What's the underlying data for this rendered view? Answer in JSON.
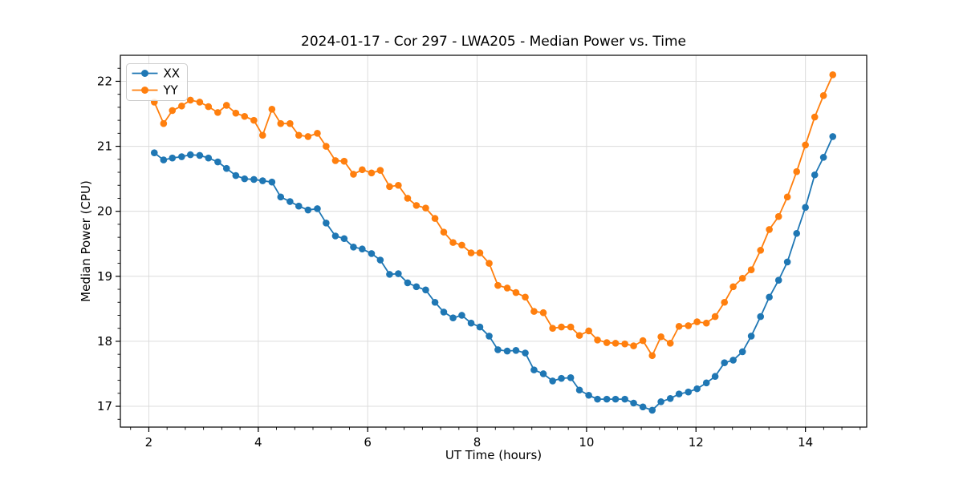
{
  "title": "2024-01-17 - Cor 297 - LWA205 - Median Power vs. Time",
  "chart_data": {
    "type": "line",
    "title": "2024-01-17 - Cor 297 - LWA205 - Median Power vs. Time",
    "xlabel": "UT Time (hours)",
    "ylabel": "Median Power (CPU)",
    "xlim": [
      1.48,
      15.12
    ],
    "ylim": [
      16.68,
      22.4
    ],
    "x_major_ticks": [
      2,
      4,
      6,
      8,
      10,
      12,
      14
    ],
    "y_major_ticks": [
      17,
      18,
      19,
      20,
      21,
      22
    ],
    "x_minor_step": 0.333333,
    "y_minor_step": 0.2,
    "grid": "major",
    "grid_color": "#dcdcdc",
    "legend_position": "upper-left",
    "x": [
      2.1,
      2.27,
      2.43,
      2.6,
      2.76,
      2.93,
      3.09,
      3.26,
      3.42,
      3.59,
      3.75,
      3.92,
      4.08,
      4.25,
      4.41,
      4.58,
      4.74,
      4.91,
      5.08,
      5.24,
      5.41,
      5.57,
      5.74,
      5.9,
      6.07,
      6.23,
      6.4,
      6.56,
      6.73,
      6.89,
      7.06,
      7.23,
      7.39,
      7.56,
      7.72,
      7.89,
      8.05,
      8.22,
      8.38,
      8.55,
      8.71,
      8.88,
      9.04,
      9.21,
      9.38,
      9.54,
      9.71,
      9.87,
      10.04,
      10.2,
      10.37,
      10.53,
      10.7,
      10.86,
      11.03,
      11.2,
      11.36,
      11.53,
      11.69,
      11.86,
      12.02,
      12.19,
      12.35,
      12.52,
      12.68,
      12.85,
      13.01,
      13.18,
      13.34,
      13.51,
      13.67,
      13.84,
      14.0,
      14.17,
      14.33,
      14.5
    ],
    "series": [
      {
        "name": "XX",
        "color": "#1f77b4",
        "values": [
          20.9,
          20.79,
          20.82,
          20.84,
          20.87,
          20.86,
          20.82,
          20.76,
          20.66,
          20.55,
          20.5,
          20.49,
          20.47,
          20.45,
          20.22,
          20.15,
          20.08,
          20.02,
          20.04,
          19.82,
          19.62,
          19.58,
          19.45,
          19.42,
          19.35,
          19.25,
          19.03,
          19.04,
          18.9,
          18.84,
          18.79,
          18.6,
          18.45,
          18.36,
          18.4,
          18.28,
          18.22,
          18.08,
          17.87,
          17.85,
          17.86,
          17.82,
          17.56,
          17.5,
          17.39,
          17.43,
          17.44,
          17.25,
          17.17,
          17.11,
          17.11,
          17.11,
          17.11,
          17.05,
          16.99,
          16.94,
          17.07,
          17.12,
          17.19,
          17.22,
          17.27,
          17.36,
          17.46,
          17.67,
          17.71,
          17.84,
          18.08,
          18.38,
          18.68,
          18.94,
          19.22,
          19.66,
          20.06,
          20.56,
          20.83,
          21.15
        ]
      },
      {
        "name": "YY",
        "color": "#ff7f0e",
        "values": [
          21.68,
          21.35,
          21.55,
          21.62,
          21.71,
          21.68,
          21.61,
          21.52,
          21.63,
          21.51,
          21.46,
          21.4,
          21.17,
          21.57,
          21.35,
          21.35,
          21.17,
          21.15,
          21.2,
          21.0,
          20.78,
          20.77,
          20.57,
          20.64,
          20.59,
          20.63,
          20.38,
          20.4,
          20.2,
          20.09,
          20.05,
          19.89,
          19.68,
          19.52,
          19.48,
          19.36,
          19.36,
          19.2,
          18.86,
          18.82,
          18.75,
          18.68,
          18.46,
          18.44,
          18.2,
          18.22,
          18.22,
          18.09,
          18.16,
          18.02,
          17.98,
          17.97,
          17.96,
          17.93,
          18.01,
          17.78,
          18.07,
          17.97,
          18.23,
          18.24,
          18.3,
          18.28,
          18.38,
          18.6,
          18.84,
          18.97,
          19.1,
          19.4,
          19.72,
          19.92,
          20.22,
          20.61,
          21.02,
          21.45,
          21.78,
          22.1
        ]
      }
    ]
  }
}
